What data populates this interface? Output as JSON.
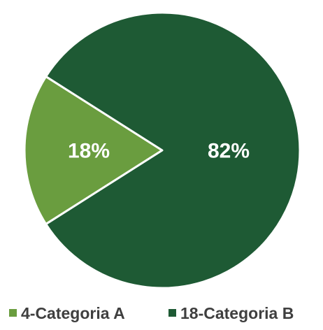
{
  "chart_data": {
    "type": "pie",
    "slices": [
      {
        "name": "4-Categoria A",
        "value": 18,
        "label": "18%",
        "color": "#6a9d3f"
      },
      {
        "name": "18-Categoria B",
        "value": 82,
        "label": "82%",
        "color": "#1e5a34"
      }
    ],
    "legend": {
      "placement": "bottom"
    },
    "start_angle": "left"
  }
}
